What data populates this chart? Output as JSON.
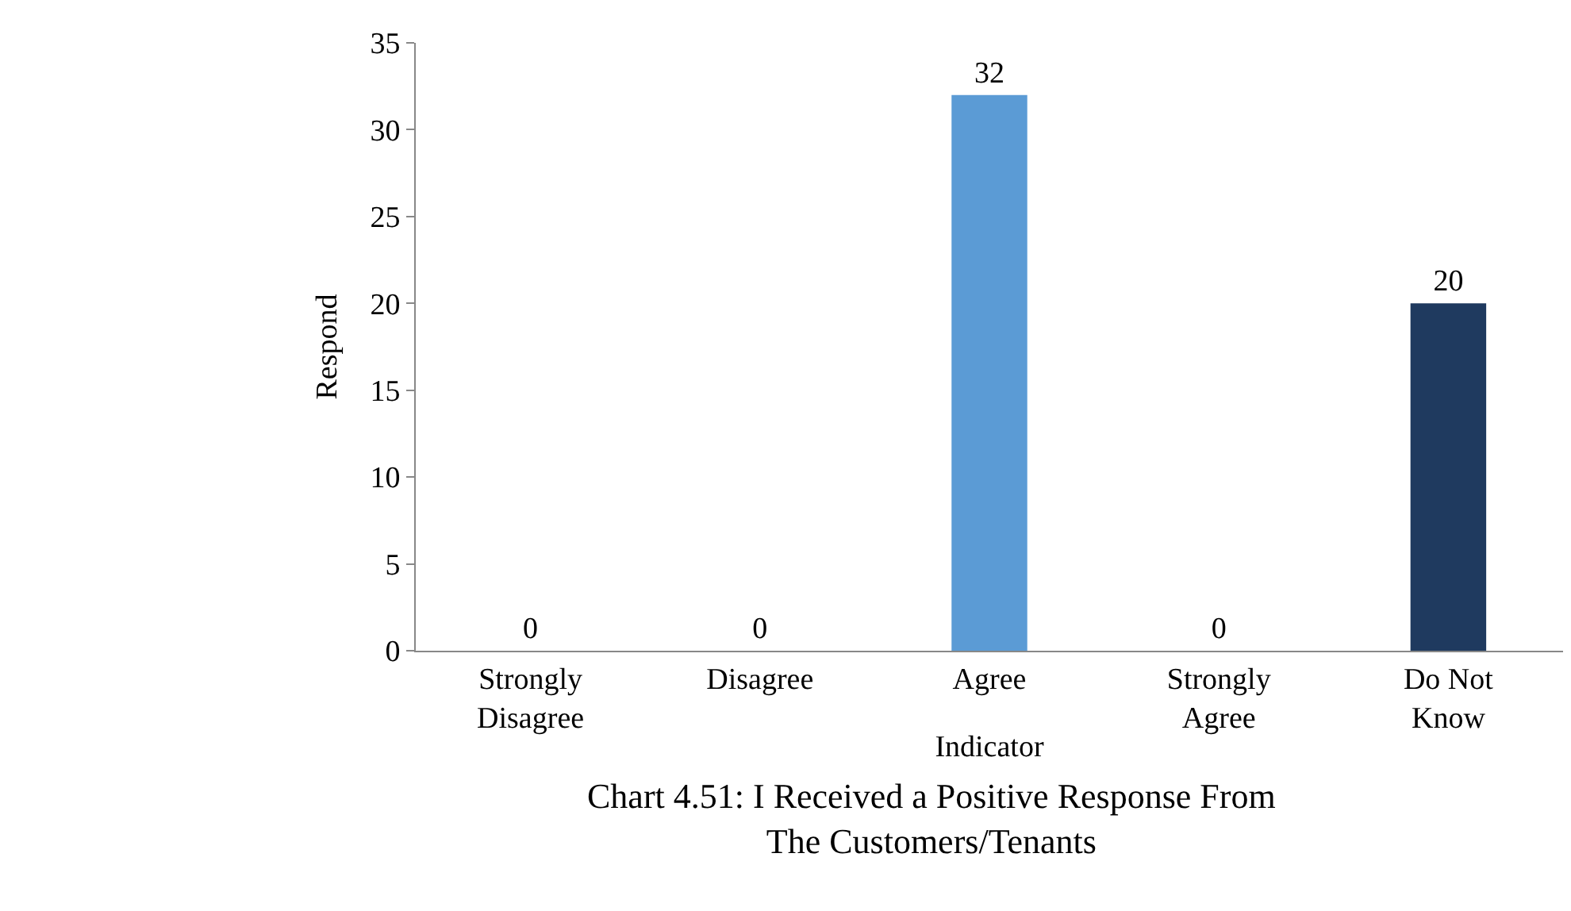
{
  "chart_data": {
    "type": "bar",
    "title": "Chart 4.51: I Received a Positive Response From The Customers/Tenants",
    "xlabel": "Indicator",
    "ylabel": "Respond",
    "categories": [
      "Strongly Disagree",
      "Disagree",
      "Agree",
      "Strongly Agree",
      "Do Not Know"
    ],
    "values": [
      0,
      0,
      32,
      0,
      20
    ],
    "colors": [
      "#5b9bd5",
      "#5b9bd5",
      "#5b9bd5",
      "#1f3a5f",
      "#1f3a5f"
    ],
    "ylim": [
      0,
      35
    ],
    "yticks": [
      0,
      5,
      10,
      15,
      20,
      25,
      30,
      35
    ],
    "data_labels": true,
    "legend": false
  }
}
